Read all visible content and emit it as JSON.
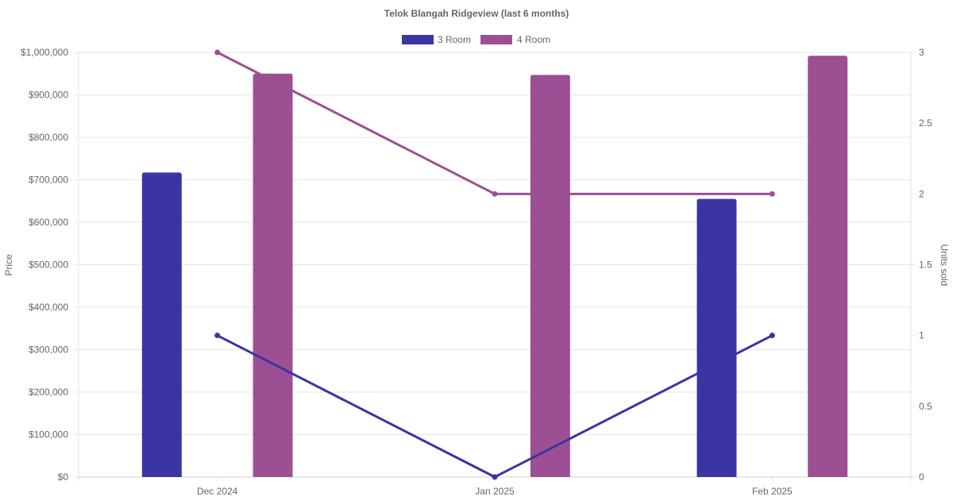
{
  "chart_data": {
    "type": "bar",
    "title": "Telok Blangah Ridgeview (last 6 months)",
    "categories": [
      "Dec 2024",
      "Jan 2025",
      "Feb 2025"
    ],
    "y_left": {
      "label": "Price",
      "range": [
        0,
        1000000
      ],
      "ticks": [
        "$0",
        "$100,000",
        "$200,000",
        "$300,000",
        "$400,000",
        "$500,000",
        "$600,000",
        "$700,000",
        "$800,000",
        "$900,000",
        "$1,000,000"
      ]
    },
    "y_right": {
      "label": "Units sold",
      "range": [
        0,
        3
      ],
      "ticks": [
        "0",
        "0.5",
        "1",
        "1.5",
        "2",
        "2.5",
        "3"
      ]
    },
    "grid": true,
    "legend_position": "top",
    "bar_series": [
      {
        "name": "3 Room",
        "color": "#3a35a2",
        "values": [
          717000,
          null,
          655000
        ]
      },
      {
        "name": "4 Room",
        "color": "#9d4f93",
        "values": [
          950000,
          947000,
          992000
        ]
      }
    ],
    "line_series": [
      {
        "name": "3 Room",
        "color": "#3a35a2",
        "axis": "right",
        "values": [
          1,
          0,
          1
        ]
      },
      {
        "name": "4 Room",
        "color": "#9d4f93",
        "axis": "right",
        "values": [
          3,
          2,
          2
        ]
      }
    ],
    "legend": [
      {
        "name": "3 Room",
        "color": "#3a35a2"
      },
      {
        "name": "4 Room",
        "color": "#9d4f93"
      }
    ]
  }
}
